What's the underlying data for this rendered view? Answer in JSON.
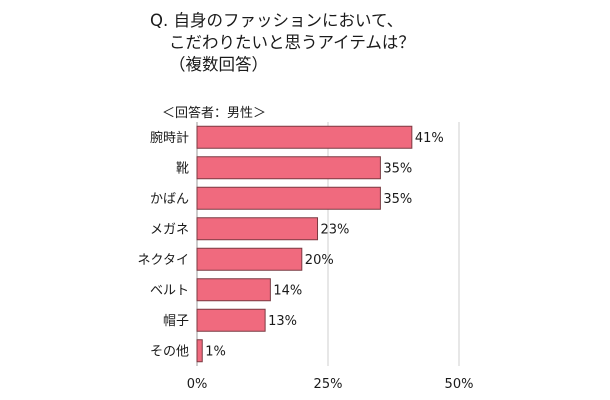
{
  "header": {
    "title_line1": "Q. 自身のファッションにおいて、",
    "title_line2": "こだわりたいと思うアイテムは？",
    "title_line3": "（複数回答）",
    "respondent": "＜回答者：男性＞"
  },
  "chart_data": {
    "type": "bar",
    "orientation": "horizontal",
    "title": "Q. 自身のファッションにおいて、こだわりたいと思うアイテムは？（複数回答）",
    "subtitle": "＜回答者：男性＞",
    "categories": [
      "腕時計",
      "靴",
      "かばん",
      "メガネ",
      "ネクタイ",
      "ベルト",
      "帽子",
      "その他"
    ],
    "values": [
      41,
      35,
      35,
      23,
      20,
      14,
      13,
      1
    ],
    "value_labels": [
      "41%",
      "35%",
      "35%",
      "23%",
      "20%",
      "14%",
      "13%",
      "1%"
    ],
    "xlim": [
      0,
      50
    ],
    "xticks": [
      0,
      25,
      50
    ],
    "xtick_labels": [
      "0%",
      "25%",
      "50%"
    ],
    "grid": true,
    "colors": {
      "bar": "#f06a7e",
      "bar_border": "#7a3a42",
      "grid": "#cfcfcf"
    }
  }
}
